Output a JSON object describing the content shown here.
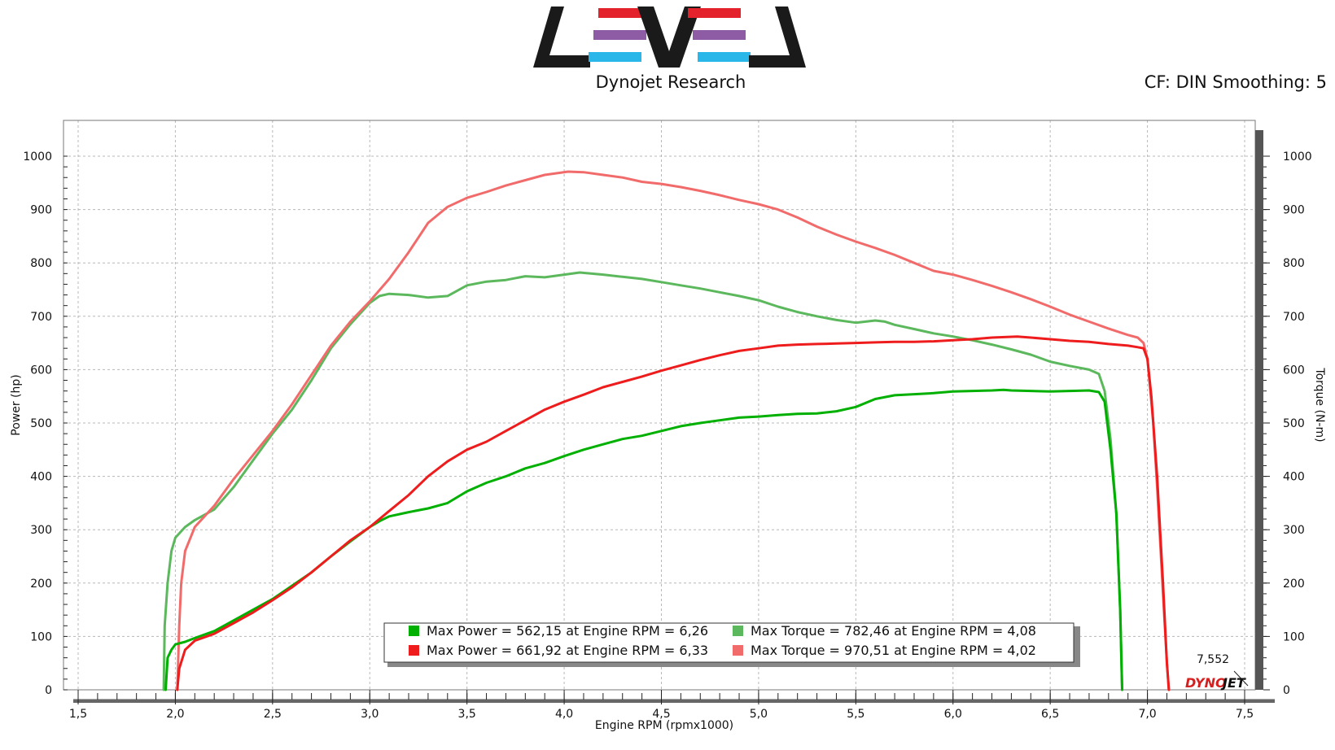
{
  "header": {
    "brand_caption": "Dynojet Research",
    "correction_info": "CF: DIN Smoothing: 5"
  },
  "logo": {
    "icon": "level-logo",
    "colors": {
      "black": "#1a1a1a",
      "red": "#e4222c",
      "purple": "#8e5ba5",
      "blue": "#29b6e9"
    }
  },
  "watermark": {
    "text_left": "DYNO",
    "text_right": "JET",
    "max_rpm_label": "7,552"
  },
  "chart_data": {
    "type": "line",
    "xlabel": "Engine RPM (rpmx1000)",
    "ylabel": "Power (hp)",
    "y2label": "Torque (N-m)",
    "xlim": [
      1.45,
      7.6
    ],
    "ylim": [
      0,
      1000
    ],
    "y2lim": [
      0,
      1000
    ],
    "x_ticks": [
      1.5,
      2.0,
      2.5,
      3.0,
      3.5,
      4.0,
      4.5,
      5.0,
      5.5,
      6.0,
      6.5,
      7.0,
      7.5
    ],
    "x_tick_labels": [
      "1,5",
      "2,0",
      "2,5",
      "3,0",
      "3,5",
      "4,0",
      "4,5",
      "5,0",
      "5,5",
      "6,0",
      "6,5",
      "7,0",
      "7,5"
    ],
    "y_ticks": [
      0,
      100,
      200,
      300,
      400,
      500,
      600,
      700,
      800,
      900,
      1000
    ],
    "y_tick_labels": [
      "0",
      "100",
      "200",
      "300",
      "400",
      "500",
      "600",
      "700",
      "800",
      "900",
      "1000"
    ],
    "grid": true,
    "legend_position": "bottom-center",
    "series": [
      {
        "name": "Max Power = 562,15 at Engine RPM = 6,26",
        "quantity": "power",
        "color": "#00b000",
        "points": [
          [
            1.95,
            0
          ],
          [
            1.96,
            60
          ],
          [
            1.98,
            75
          ],
          [
            2.0,
            85
          ],
          [
            2.05,
            90
          ],
          [
            2.1,
            97
          ],
          [
            2.2,
            110
          ],
          [
            2.3,
            130
          ],
          [
            2.4,
            150
          ],
          [
            2.5,
            170
          ],
          [
            2.6,
            195
          ],
          [
            2.7,
            220
          ],
          [
            2.8,
            250
          ],
          [
            2.9,
            278
          ],
          [
            3.0,
            305
          ],
          [
            3.05,
            316
          ],
          [
            3.1,
            325
          ],
          [
            3.2,
            333
          ],
          [
            3.3,
            340
          ],
          [
            3.4,
            350
          ],
          [
            3.5,
            372
          ],
          [
            3.6,
            388
          ],
          [
            3.7,
            400
          ],
          [
            3.8,
            415
          ],
          [
            3.9,
            425
          ],
          [
            4.0,
            438
          ],
          [
            4.1,
            450
          ],
          [
            4.2,
            460
          ],
          [
            4.3,
            470
          ],
          [
            4.4,
            476
          ],
          [
            4.5,
            485
          ],
          [
            4.6,
            494
          ],
          [
            4.7,
            500
          ],
          [
            4.8,
            505
          ],
          [
            4.9,
            510
          ],
          [
            5.0,
            512
          ],
          [
            5.1,
            515
          ],
          [
            5.2,
            517
          ],
          [
            5.3,
            518
          ],
          [
            5.4,
            522
          ],
          [
            5.5,
            530
          ],
          [
            5.6,
            545
          ],
          [
            5.7,
            552
          ],
          [
            5.8,
            554
          ],
          [
            5.9,
            556
          ],
          [
            6.0,
            559
          ],
          [
            6.1,
            560
          ],
          [
            6.2,
            561
          ],
          [
            6.26,
            562
          ],
          [
            6.3,
            561
          ],
          [
            6.4,
            560
          ],
          [
            6.5,
            559
          ],
          [
            6.6,
            560
          ],
          [
            6.7,
            561
          ],
          [
            6.75,
            558
          ],
          [
            6.78,
            540
          ],
          [
            6.81,
            450
          ],
          [
            6.84,
            330
          ],
          [
            6.86,
            150
          ],
          [
            6.87,
            0
          ]
        ]
      },
      {
        "name": "Max Power = 661,92 at Engine RPM = 6,33",
        "quantity": "power",
        "color": "#ee1c1c",
        "points": [
          [
            2.01,
            0
          ],
          [
            2.02,
            40
          ],
          [
            2.05,
            75
          ],
          [
            2.1,
            92
          ],
          [
            2.2,
            105
          ],
          [
            2.3,
            125
          ],
          [
            2.4,
            145
          ],
          [
            2.5,
            168
          ],
          [
            2.6,
            192
          ],
          [
            2.7,
            220
          ],
          [
            2.8,
            250
          ],
          [
            2.9,
            280
          ],
          [
            3.0,
            305
          ],
          [
            3.1,
            335
          ],
          [
            3.2,
            365
          ],
          [
            3.3,
            400
          ],
          [
            3.4,
            428
          ],
          [
            3.5,
            450
          ],
          [
            3.6,
            465
          ],
          [
            3.7,
            485
          ],
          [
            3.8,
            505
          ],
          [
            3.9,
            525
          ],
          [
            4.0,
            540
          ],
          [
            4.1,
            553
          ],
          [
            4.2,
            567
          ],
          [
            4.3,
            577
          ],
          [
            4.4,
            587
          ],
          [
            4.5,
            598
          ],
          [
            4.6,
            608
          ],
          [
            4.7,
            618
          ],
          [
            4.8,
            627
          ],
          [
            4.9,
            635
          ],
          [
            5.0,
            640
          ],
          [
            5.1,
            645
          ],
          [
            5.2,
            647
          ],
          [
            5.3,
            648
          ],
          [
            5.4,
            649
          ],
          [
            5.5,
            650
          ],
          [
            5.6,
            651
          ],
          [
            5.7,
            652
          ],
          [
            5.8,
            652
          ],
          [
            5.9,
            653
          ],
          [
            6.0,
            655
          ],
          [
            6.1,
            657
          ],
          [
            6.2,
            660
          ],
          [
            6.33,
            662
          ],
          [
            6.4,
            660
          ],
          [
            6.5,
            657
          ],
          [
            6.6,
            654
          ],
          [
            6.7,
            652
          ],
          [
            6.8,
            648
          ],
          [
            6.9,
            645
          ],
          [
            6.95,
            642
          ],
          [
            6.98,
            640
          ],
          [
            7.0,
            620
          ],
          [
            7.02,
            550
          ],
          [
            7.05,
            400
          ],
          [
            7.08,
            200
          ],
          [
            7.1,
            50
          ],
          [
            7.11,
            0
          ]
        ]
      },
      {
        "name": "Max Torque = 782,46 at Engine RPM = 4,08",
        "quantity": "torque",
        "color": "#5cb85c",
        "points": [
          [
            1.94,
            0
          ],
          [
            1.945,
            120
          ],
          [
            1.96,
            200
          ],
          [
            1.98,
            260
          ],
          [
            2.0,
            285
          ],
          [
            2.05,
            305
          ],
          [
            2.1,
            318
          ],
          [
            2.2,
            338
          ],
          [
            2.3,
            380
          ],
          [
            2.4,
            430
          ],
          [
            2.5,
            480
          ],
          [
            2.6,
            525
          ],
          [
            2.7,
            580
          ],
          [
            2.8,
            640
          ],
          [
            2.9,
            685
          ],
          [
            3.0,
            725
          ],
          [
            3.05,
            738
          ],
          [
            3.1,
            742
          ],
          [
            3.2,
            740
          ],
          [
            3.3,
            735
          ],
          [
            3.4,
            738
          ],
          [
            3.5,
            758
          ],
          [
            3.6,
            765
          ],
          [
            3.7,
            768
          ],
          [
            3.8,
            775
          ],
          [
            3.9,
            773
          ],
          [
            4.0,
            778
          ],
          [
            4.08,
            782
          ],
          [
            4.2,
            778
          ],
          [
            4.3,
            774
          ],
          [
            4.4,
            770
          ],
          [
            4.5,
            764
          ],
          [
            4.6,
            758
          ],
          [
            4.7,
            752
          ],
          [
            4.8,
            745
          ],
          [
            4.9,
            738
          ],
          [
            5.0,
            730
          ],
          [
            5.1,
            718
          ],
          [
            5.2,
            708
          ],
          [
            5.3,
            700
          ],
          [
            5.4,
            693
          ],
          [
            5.5,
            688
          ],
          [
            5.6,
            692
          ],
          [
            5.65,
            690
          ],
          [
            5.7,
            684
          ],
          [
            5.8,
            676
          ],
          [
            5.9,
            668
          ],
          [
            6.0,
            662
          ],
          [
            6.1,
            655
          ],
          [
            6.2,
            647
          ],
          [
            6.3,
            638
          ],
          [
            6.4,
            628
          ],
          [
            6.5,
            615
          ],
          [
            6.6,
            607
          ],
          [
            6.7,
            600
          ],
          [
            6.75,
            592
          ],
          [
            6.78,
            560
          ],
          [
            6.81,
            470
          ],
          [
            6.84,
            330
          ],
          [
            6.86,
            150
          ],
          [
            6.87,
            0
          ]
        ]
      },
      {
        "name": "Max Torque = 970,51 at Engine RPM = 4,02",
        "quantity": "torque",
        "color": "#f26b6b",
        "points": [
          [
            2.01,
            0
          ],
          [
            2.02,
            120
          ],
          [
            2.03,
            200
          ],
          [
            2.05,
            260
          ],
          [
            2.1,
            305
          ],
          [
            2.2,
            345
          ],
          [
            2.3,
            395
          ],
          [
            2.4,
            440
          ],
          [
            2.5,
            485
          ],
          [
            2.6,
            535
          ],
          [
            2.7,
            590
          ],
          [
            2.8,
            645
          ],
          [
            2.9,
            690
          ],
          [
            3.0,
            728
          ],
          [
            3.1,
            770
          ],
          [
            3.2,
            820
          ],
          [
            3.3,
            875
          ],
          [
            3.4,
            905
          ],
          [
            3.5,
            922
          ],
          [
            3.6,
            933
          ],
          [
            3.7,
            945
          ],
          [
            3.8,
            955
          ],
          [
            3.9,
            965
          ],
          [
            4.02,
            971
          ],
          [
            4.1,
            970
          ],
          [
            4.2,
            965
          ],
          [
            4.3,
            960
          ],
          [
            4.4,
            952
          ],
          [
            4.5,
            948
          ],
          [
            4.6,
            942
          ],
          [
            4.7,
            935
          ],
          [
            4.8,
            927
          ],
          [
            4.9,
            918
          ],
          [
            5.0,
            910
          ],
          [
            5.1,
            900
          ],
          [
            5.2,
            885
          ],
          [
            5.3,
            868
          ],
          [
            5.4,
            853
          ],
          [
            5.5,
            840
          ],
          [
            5.6,
            828
          ],
          [
            5.7,
            815
          ],
          [
            5.8,
            800
          ],
          [
            5.9,
            785
          ],
          [
            6.0,
            778
          ],
          [
            6.1,
            768
          ],
          [
            6.2,
            757
          ],
          [
            6.3,
            745
          ],
          [
            6.4,
            732
          ],
          [
            6.5,
            718
          ],
          [
            6.6,
            703
          ],
          [
            6.7,
            690
          ],
          [
            6.8,
            677
          ],
          [
            6.9,
            665
          ],
          [
            6.95,
            660
          ],
          [
            6.98,
            650
          ],
          [
            7.0,
            620
          ],
          [
            7.03,
            500
          ],
          [
            7.05,
            380
          ],
          [
            7.08,
            180
          ],
          [
            7.1,
            50
          ],
          [
            7.11,
            0
          ]
        ]
      }
    ]
  }
}
